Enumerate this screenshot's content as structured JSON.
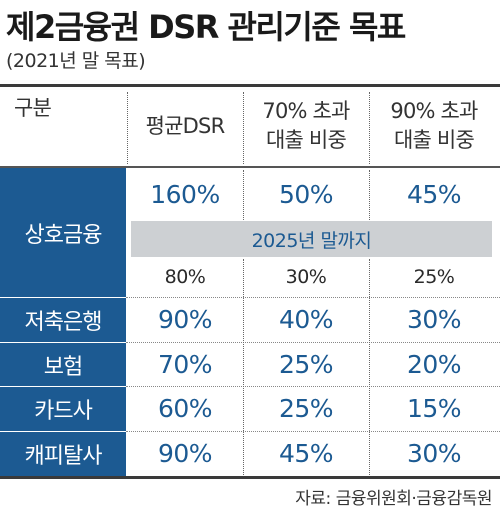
{
  "title": "제2금융권 DSR 관리기준 목표",
  "subtitle": "(2021년 말 목표)",
  "source": "자료: 금융위원회·금융감독원",
  "chart_data": {
    "type": "table",
    "title": "제2금융권 DSR 관리기준 목표",
    "subtitle": "(2021년 말 목표)",
    "columns": [
      "구분",
      "평균DSR",
      "70% 초과\n대출 비중",
      "90% 초과\n대출 비중"
    ],
    "column_lines": [
      [
        "구분"
      ],
      [
        "평균DSR"
      ],
      [
        "70% 초과",
        "대출 비중"
      ],
      [
        "90% 초과",
        "대출 비중"
      ]
    ],
    "rows": [
      {
        "label": "상호금융",
        "values": [
          "160%",
          "50%",
          "45%"
        ],
        "note": "2025년 말까지",
        "note_values": [
          "80%",
          "30%",
          "25%"
        ]
      },
      {
        "label": "저축은행",
        "values": [
          "90%",
          "40%",
          "30%"
        ]
      },
      {
        "label": "보험",
        "values": [
          "70%",
          "25%",
          "20%"
        ]
      },
      {
        "label": "카드사",
        "values": [
          "60%",
          "25%",
          "15%"
        ]
      },
      {
        "label": "캐피탈사",
        "values": [
          "90%",
          "45%",
          "30%"
        ]
      }
    ],
    "source": "자료: 금융위원회·금융감독원"
  },
  "colors": {
    "accent": "#1c5a92",
    "band": "#cdd0d3",
    "text": "#222222"
  }
}
